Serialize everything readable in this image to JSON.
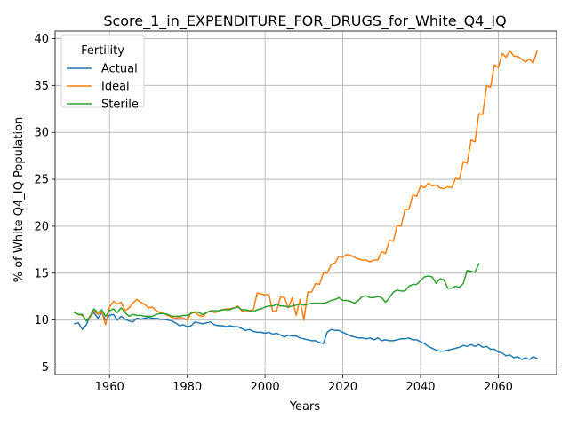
{
  "chart_data": {
    "type": "line",
    "title": "Score_1_in_EXPENDITURE_FOR_DRUGS_for_White_Q4_IQ",
    "xlabel": "Years",
    "ylabel": "% of White Q4_IQ Population",
    "xlim": [
      1946,
      2075
    ],
    "ylim": [
      4.2,
      40.8
    ],
    "xticks": [
      1960,
      1980,
      2000,
      2020,
      2040,
      2060
    ],
    "yticks": [
      5,
      10,
      15,
      20,
      25,
      30,
      35,
      40
    ],
    "grid": true,
    "legend": {
      "title": "Fertility",
      "placement": "top-left"
    },
    "series": [
      {
        "name": "Actual",
        "color": "#1f77b4",
        "x": [
          1951,
          1952,
          1953,
          1954,
          1955,
          1956,
          1957,
          1958,
          1959,
          1960,
          1961,
          1962,
          1963,
          1964,
          1965,
          1966,
          1967,
          1968,
          1969,
          1970,
          1971,
          1972,
          1973,
          1974,
          1975,
          1976,
          1977,
          1978,
          1979,
          1980,
          1981,
          1982,
          1983,
          1984,
          1985,
          1986,
          1987,
          1988,
          1989,
          1990,
          1991,
          1992,
          1993,
          1994,
          1995,
          1996,
          1997,
          1998,
          1999,
          2000,
          2001,
          2002,
          2003,
          2004,
          2005,
          2006,
          2007,
          2008,
          2009,
          2010,
          2011,
          2012,
          2013,
          2014,
          2015,
          2016,
          2017,
          2018,
          2019,
          2020,
          2021,
          2022,
          2023,
          2024,
          2025,
          2026,
          2027,
          2028,
          2029,
          2030,
          2031,
          2032,
          2033,
          2034,
          2035,
          2036,
          2037,
          2038,
          2039,
          2040,
          2041,
          2042,
          2043,
          2044,
          2045,
          2046,
          2047,
          2048,
          2049,
          2050,
          2051,
          2052,
          2053,
          2054,
          2055,
          2056,
          2057,
          2058,
          2059,
          2060,
          2061,
          2062,
          2063,
          2064,
          2065,
          2066,
          2067,
          2068,
          2069,
          2070
        ],
        "values": [
          9.6,
          9.7,
          9.0,
          9.5,
          10.4,
          10.8,
          10.2,
          10.8,
          10.0,
          10.5,
          10.6,
          10.0,
          10.4,
          10.1,
          9.9,
          9.8,
          10.2,
          10.1,
          10.2,
          10.3,
          10.2,
          10.2,
          10.1,
          10.1,
          10.0,
          9.9,
          9.7,
          9.4,
          9.5,
          9.3,
          9.4,
          9.8,
          9.7,
          9.6,
          9.7,
          9.8,
          9.5,
          9.4,
          9.4,
          9.3,
          9.4,
          9.3,
          9.3,
          9.1,
          8.9,
          9.0,
          8.8,
          8.7,
          8.7,
          8.6,
          8.7,
          8.5,
          8.6,
          8.4,
          8.2,
          8.4,
          8.3,
          8.3,
          8.1,
          8.0,
          7.9,
          7.8,
          7.8,
          7.6,
          7.5,
          8.7,
          9.0,
          8.9,
          8.9,
          8.7,
          8.5,
          8.3,
          8.2,
          8.1,
          8.1,
          8.0,
          8.1,
          7.9,
          8.1,
          7.8,
          7.9,
          7.8,
          7.8,
          7.9,
          8.0,
          8.0,
          8.1,
          7.9,
          7.9,
          7.7,
          7.5,
          7.2,
          7.0,
          6.8,
          6.7,
          6.7,
          6.8,
          6.9,
          7.0,
          7.1,
          7.3,
          7.2,
          7.4,
          7.2,
          7.4,
          7.1,
          7.2,
          6.9,
          6.9,
          6.6,
          6.5,
          6.2,
          6.3,
          6.0,
          6.1,
          5.8,
          6.0,
          5.8,
          6.1,
          5.9
        ]
      },
      {
        "name": "Ideal",
        "color": "#ff7f0e",
        "x": [
          1951,
          1952,
          1953,
          1954,
          1955,
          1956,
          1957,
          1958,
          1959,
          1960,
          1961,
          1962,
          1963,
          1964,
          1965,
          1966,
          1967,
          1968,
          1969,
          1970,
          1971,
          1972,
          1973,
          1974,
          1975,
          1976,
          1977,
          1978,
          1979,
          1980,
          1981,
          1982,
          1983,
          1984,
          1985,
          1986,
          1987,
          1988,
          1989,
          1990,
          1991,
          1992,
          1993,
          1994,
          1995,
          1996,
          1997,
          1998,
          1999,
          2000,
          2001,
          2002,
          2003,
          2004,
          2005,
          2006,
          2007,
          2008,
          2009,
          2010,
          2011,
          2012,
          2013,
          2014,
          2015,
          2016,
          2017,
          2018,
          2019,
          2020,
          2021,
          2022,
          2023,
          2024,
          2025,
          2026,
          2027,
          2028,
          2029,
          2030,
          2031,
          2032,
          2033,
          2034,
          2035,
          2036,
          2037,
          2038,
          2039,
          2040,
          2041,
          2042,
          2043,
          2044,
          2045,
          2046,
          2047,
          2048,
          2049,
          2050,
          2051,
          2052,
          2053,
          2054,
          2055,
          2056,
          2057,
          2058,
          2059,
          2060,
          2061,
          2062,
          2063,
          2064,
          2065,
          2066,
          2067,
          2068,
          2069,
          2070
        ],
        "values": [
          10.8,
          10.6,
          10.5,
          10.0,
          10.3,
          11.0,
          10.6,
          10.9,
          9.5,
          11.4,
          12.0,
          11.7,
          11.9,
          11.0,
          11.3,
          11.8,
          12.2,
          11.9,
          11.7,
          11.3,
          11.4,
          11.0,
          10.8,
          10.7,
          10.5,
          10.3,
          10.2,
          10.3,
          10.2,
          10.0,
          10.8,
          10.8,
          10.5,
          10.4,
          10.8,
          11.0,
          10.8,
          10.9,
          11.1,
          11.2,
          11.2,
          11.3,
          11.5,
          11.0,
          10.9,
          11.0,
          11.1,
          12.9,
          12.8,
          12.7,
          12.7,
          10.9,
          11.0,
          12.5,
          12.4,
          11.3,
          12.4,
          10.5,
          12.2,
          10.0,
          13.0,
          13.0,
          13.9,
          13.8,
          15.0,
          15.0,
          15.9,
          16.1,
          16.8,
          16.7,
          17.0,
          16.9,
          16.7,
          16.5,
          16.4,
          16.4,
          16.2,
          16.4,
          16.4,
          17.3,
          17.1,
          18.5,
          18.4,
          20.1,
          20.0,
          21.8,
          21.8,
          23.3,
          23.2,
          24.3,
          24.1,
          24.6,
          24.3,
          24.4,
          24.1,
          24.0,
          24.2,
          24.1,
          25.1,
          25.0,
          26.9,
          26.7,
          29.2,
          29.0,
          32.0,
          31.9,
          35.0,
          34.8,
          37.2,
          36.9,
          38.4,
          38.0,
          38.7,
          38.1,
          38.1,
          37.8,
          37.5,
          37.8,
          37.4,
          38.7
        ]
      },
      {
        "name": "Sterile",
        "color": "#2ca02c",
        "x": [
          1951,
          1952,
          1953,
          1954,
          1955,
          1956,
          1957,
          1958,
          1959,
          1960,
          1961,
          1962,
          1963,
          1964,
          1965,
          1966,
          1967,
          1968,
          1969,
          1970,
          1971,
          1972,
          1973,
          1974,
          1975,
          1976,
          1977,
          1978,
          1979,
          1980,
          1981,
          1982,
          1983,
          1984,
          1985,
          1986,
          1987,
          1988,
          1989,
          1990,
          1991,
          1992,
          1993,
          1994,
          1995,
          1996,
          1997,
          1998,
          1999,
          2000,
          2001,
          2002,
          2003,
          2004,
          2005,
          2006,
          2007,
          2008,
          2009,
          2010,
          2011,
          2012,
          2013,
          2014,
          2015,
          2016,
          2017,
          2018,
          2019,
          2020,
          2021,
          2022,
          2023,
          2024,
          2025,
          2026,
          2027,
          2028,
          2029,
          2030,
          2031,
          2032,
          2033,
          2034,
          2035,
          2036,
          2037,
          2038,
          2039,
          2040,
          2041,
          2042,
          2043,
          2044,
          2045,
          2046,
          2047,
          2048,
          2049,
          2050,
          2051,
          2052,
          2053,
          2054,
          2055
        ],
        "values": [
          10.8,
          10.6,
          10.6,
          9.9,
          10.4,
          11.2,
          10.8,
          11.1,
          10.4,
          11.0,
          11.2,
          10.8,
          11.3,
          10.8,
          10.4,
          10.6,
          10.5,
          10.5,
          10.4,
          10.4,
          10.4,
          10.6,
          10.7,
          10.7,
          10.6,
          10.4,
          10.4,
          10.4,
          10.5,
          10.5,
          10.7,
          10.9,
          10.8,
          10.6,
          10.8,
          11.0,
          11.0,
          11.0,
          11.1,
          11.1,
          11.1,
          11.3,
          11.4,
          11.1,
          11.1,
          11.0,
          10.9,
          11.1,
          11.2,
          11.4,
          11.5,
          11.5,
          11.7,
          11.5,
          11.5,
          11.4,
          11.5,
          11.6,
          11.7,
          11.6,
          11.7,
          11.8,
          11.8,
          11.8,
          11.8,
          11.9,
          12.1,
          12.2,
          12.4,
          12.1,
          12.1,
          12.0,
          11.8,
          12.1,
          12.5,
          12.6,
          12.4,
          12.4,
          12.5,
          12.4,
          11.9,
          12.4,
          13.0,
          13.2,
          13.1,
          13.1,
          13.6,
          13.8,
          13.8,
          14.2,
          14.6,
          14.7,
          14.6,
          13.9,
          14.4,
          14.3,
          13.4,
          13.4,
          13.6,
          13.5,
          13.9,
          15.3,
          15.2,
          15.1,
          16.0
        ]
      }
    ]
  }
}
